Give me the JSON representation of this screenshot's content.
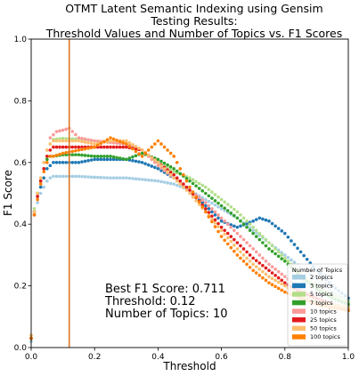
{
  "chart_data": {
    "type": "scatter",
    "title_lines": [
      "OTMT Latent Semantic Indexing using Gensim",
      "Testing Results:",
      "Threshold Values and Number of Topics vs. F1 Scores"
    ],
    "xlabel": "Threshold",
    "ylabel": "F1 Score",
    "xlim": [
      0,
      1
    ],
    "ylim": [
      0,
      1
    ],
    "xticks": [
      "0.0",
      "0.2",
      "0.4",
      "0.6",
      "0.8",
      "1.0"
    ],
    "yticks": [
      "0.0",
      "0.2",
      "0.4",
      "0.6",
      "0.8",
      "1.0"
    ],
    "grid": false,
    "vline": {
      "x": 0.12,
      "color": "#d9782b"
    },
    "annotation_lines": [
      "Best F1 Score: 0.711",
      "Threshold: 0.12",
      "Number of Topics: 10"
    ],
    "legend": {
      "title": "Number of Topics",
      "position": "lower-right"
    },
    "series": [
      {
        "name": "2 topics",
        "color": "#a6cee3",
        "x": [
          0.0,
          0.01,
          0.02,
          0.03,
          0.04,
          0.05,
          0.06,
          0.07,
          0.1,
          0.15,
          0.2,
          0.25,
          0.3,
          0.35,
          0.4,
          0.45,
          0.5,
          0.55,
          0.6,
          0.65,
          0.7,
          0.75,
          0.8,
          0.85,
          0.9,
          0.95,
          1.0
        ],
        "y": [
          0.02,
          0.43,
          0.47,
          0.5,
          0.52,
          0.54,
          0.55,
          0.555,
          0.555,
          0.555,
          0.552,
          0.55,
          0.55,
          0.545,
          0.54,
          0.53,
          0.51,
          0.48,
          0.45,
          0.42,
          0.38,
          0.34,
          0.3,
          0.26,
          0.22,
          0.18,
          0.15
        ]
      },
      {
        "name": "3 topics",
        "color": "#1f78b4",
        "x": [
          0.0,
          0.01,
          0.02,
          0.03,
          0.04,
          0.05,
          0.06,
          0.07,
          0.1,
          0.15,
          0.2,
          0.25,
          0.3,
          0.35,
          0.4,
          0.45,
          0.5,
          0.55,
          0.6,
          0.65,
          0.7,
          0.72,
          0.75,
          0.8,
          0.85,
          0.9,
          0.95,
          1.0
        ],
        "y": [
          0.03,
          0.44,
          0.49,
          0.52,
          0.55,
          0.58,
          0.59,
          0.6,
          0.6,
          0.6,
          0.61,
          0.61,
          0.61,
          0.6,
          0.58,
          0.55,
          0.51,
          0.46,
          0.41,
          0.39,
          0.41,
          0.42,
          0.41,
          0.37,
          0.31,
          0.25,
          0.2,
          0.16
        ]
      },
      {
        "name": "5 topics",
        "color": "#b2df8a",
        "x": [
          0.0,
          0.01,
          0.02,
          0.03,
          0.04,
          0.05,
          0.06,
          0.07,
          0.1,
          0.15,
          0.2,
          0.25,
          0.3,
          0.35,
          0.4,
          0.45,
          0.5,
          0.55,
          0.6,
          0.65,
          0.7,
          0.75,
          0.8,
          0.85,
          0.9,
          0.95,
          1.0
        ],
        "y": [
          0.04,
          0.45,
          0.5,
          0.54,
          0.58,
          0.62,
          0.66,
          0.675,
          0.678,
          0.676,
          0.67,
          0.665,
          0.66,
          0.64,
          0.6,
          0.57,
          0.55,
          0.52,
          0.48,
          0.44,
          0.39,
          0.34,
          0.29,
          0.24,
          0.2,
          0.17,
          0.15
        ]
      },
      {
        "name": "7 topics",
        "color": "#33a02c",
        "x": [
          0.0,
          0.01,
          0.02,
          0.03,
          0.04,
          0.05,
          0.06,
          0.07,
          0.1,
          0.15,
          0.2,
          0.25,
          0.3,
          0.35,
          0.4,
          0.45,
          0.5,
          0.55,
          0.6,
          0.65,
          0.7,
          0.75,
          0.8,
          0.85,
          0.9,
          0.95,
          1.0
        ],
        "y": [
          0.03,
          0.44,
          0.5,
          0.54,
          0.58,
          0.61,
          0.62,
          0.62,
          0.625,
          0.625,
          0.62,
          0.62,
          0.61,
          0.63,
          0.61,
          0.58,
          0.54,
          0.5,
          0.46,
          0.42,
          0.37,
          0.32,
          0.28,
          0.23,
          0.19,
          0.16,
          0.14
        ]
      },
      {
        "name": "10 topics",
        "color": "#fb9a99",
        "x": [
          0.0,
          0.01,
          0.02,
          0.03,
          0.04,
          0.05,
          0.06,
          0.07,
          0.08,
          0.1,
          0.12,
          0.15,
          0.2,
          0.25,
          0.3,
          0.35,
          0.4,
          0.45,
          0.5,
          0.55,
          0.6,
          0.65,
          0.7,
          0.75,
          0.8,
          0.85,
          0.9,
          0.95,
          1.0
        ],
        "y": [
          0.04,
          0.44,
          0.5,
          0.55,
          0.6,
          0.64,
          0.68,
          0.69,
          0.7,
          0.705,
          0.711,
          0.68,
          0.67,
          0.665,
          0.66,
          0.64,
          0.59,
          0.55,
          0.51,
          0.47,
          0.42,
          0.37,
          0.32,
          0.27,
          0.23,
          0.19,
          0.16,
          0.14,
          0.12
        ]
      },
      {
        "name": "25 topics",
        "color": "#e31a1c",
        "x": [
          0.0,
          0.01,
          0.02,
          0.03,
          0.04,
          0.05,
          0.06,
          0.07,
          0.1,
          0.15,
          0.2,
          0.25,
          0.3,
          0.35,
          0.4,
          0.45,
          0.5,
          0.55,
          0.6,
          0.65,
          0.7,
          0.75,
          0.8,
          0.85,
          0.9,
          0.95,
          1.0
        ],
        "y": [
          0.03,
          0.43,
          0.49,
          0.54,
          0.58,
          0.62,
          0.64,
          0.65,
          0.65,
          0.65,
          0.65,
          0.65,
          0.65,
          0.64,
          0.6,
          0.56,
          0.51,
          0.45,
          0.39,
          0.34,
          0.29,
          0.25,
          0.21,
          0.18,
          0.16,
          0.14,
          0.13
        ]
      },
      {
        "name": "50 topics",
        "color": "#fdbf6f",
        "x": [
          0.0,
          0.01,
          0.02,
          0.03,
          0.04,
          0.05,
          0.06,
          0.07,
          0.1,
          0.15,
          0.2,
          0.25,
          0.3,
          0.35,
          0.4,
          0.45,
          0.5,
          0.55,
          0.6,
          0.65,
          0.7,
          0.75,
          0.8,
          0.85,
          0.9,
          0.95,
          1.0
        ],
        "y": [
          0.04,
          0.44,
          0.5,
          0.55,
          0.6,
          0.64,
          0.66,
          0.67,
          0.67,
          0.67,
          0.66,
          0.67,
          0.67,
          0.64,
          0.6,
          0.55,
          0.5,
          0.44,
          0.38,
          0.32,
          0.27,
          0.23,
          0.2,
          0.17,
          0.15,
          0.14,
          0.13
        ]
      },
      {
        "name": "100 topics",
        "color": "#ff7f00",
        "x": [
          0.0,
          0.01,
          0.02,
          0.03,
          0.04,
          0.05,
          0.06,
          0.07,
          0.1,
          0.15,
          0.2,
          0.25,
          0.3,
          0.35,
          0.4,
          0.45,
          0.5,
          0.55,
          0.6,
          0.65,
          0.7,
          0.75,
          0.8,
          0.85,
          0.9,
          0.95,
          1.0
        ],
        "y": [
          0.03,
          0.43,
          0.48,
          0.53,
          0.57,
          0.6,
          0.62,
          0.62,
          0.63,
          0.64,
          0.65,
          0.68,
          0.66,
          0.62,
          0.67,
          0.62,
          0.52,
          0.44,
          0.36,
          0.3,
          0.25,
          0.21,
          0.18,
          0.16,
          0.14,
          0.13,
          0.12
        ]
      }
    ]
  }
}
